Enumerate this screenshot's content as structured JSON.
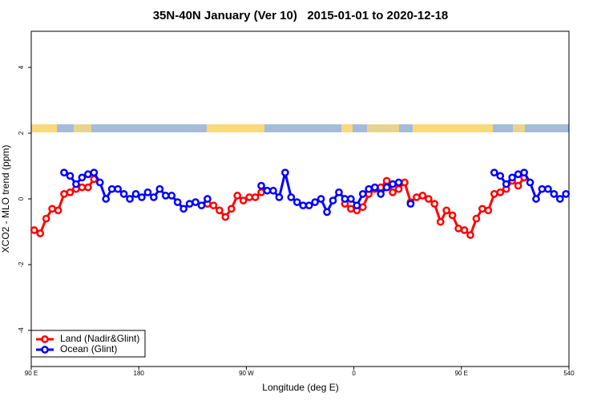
{
  "chart_data": {
    "type": "line",
    "title": "35N-40N January (Ver 10)   2015-01-01 to 2020-12-18",
    "xlabel": "Longitude (deg E)",
    "ylabel": "XCO2 - MLO trend (ppm)",
    "x": [
      92.5,
      97.5,
      102.5,
      107.5,
      112.5,
      117.5,
      122.5,
      127.5,
      132.5,
      137.5,
      142.5,
      147.5,
      152.5,
      157.5,
      162.5,
      167.5,
      172.5,
      177.5,
      182.5,
      187.5,
      192.5,
      197.5,
      202.5,
      207.5,
      212.5,
      217.5,
      222.5,
      227.5,
      232.5,
      237.5,
      242.5,
      247.5,
      252.5,
      257.5,
      262.5,
      267.5,
      272.5,
      277.5,
      282.5,
      287.5,
      292.5,
      297.5,
      302.5,
      307.5,
      312.5,
      317.5,
      322.5,
      327.5,
      332.5,
      337.5,
      342.5,
      347.5,
      352.5,
      357.5,
      362.5,
      367.5,
      372.5,
      377.5,
      382.5,
      387.5,
      392.5,
      397.5,
      402.5,
      407.5,
      412.5,
      417.5,
      422.5,
      427.5,
      432.5,
      437.5,
      442.5,
      447.5,
      452.5,
      457.5,
      462.5,
      467.5,
      472.5,
      477.5,
      482.5,
      487.5,
      492.5,
      497.5,
      502.5,
      507.5,
      512.5,
      517.5,
      522.5,
      527.5,
      532.5,
      537.5
    ],
    "series": [
      {
        "name": "Land (Nadir&Glint)",
        "color": "#ff0000",
        "values": [
          -0.95,
          -1.05,
          -0.6,
          -0.3,
          -0.35,
          0.15,
          0.2,
          0.3,
          0.35,
          0.35,
          0.6,
          null,
          null,
          null,
          null,
          null,
          null,
          null,
          null,
          null,
          null,
          null,
          null,
          null,
          null,
          null,
          null,
          null,
          null,
          -0.15,
          -0.2,
          -0.35,
          -0.55,
          -0.3,
          0.1,
          -0.05,
          0.05,
          0.05,
          0.2,
          null,
          null,
          null,
          null,
          null,
          null,
          null,
          null,
          null,
          null,
          null,
          null,
          null,
          -0.15,
          -0.3,
          -0.35,
          -0.25,
          0.15,
          0.3,
          0.35,
          0.55,
          0.2,
          0.3,
          0.5,
          -0.1,
          0.05,
          0.1,
          0.0,
          -0.15,
          -0.7,
          -0.35,
          -0.5,
          -0.9,
          -0.95,
          -1.1,
          -0.6,
          -0.3,
          -0.35,
          0.15,
          0.2,
          0.3,
          0.55,
          0.4,
          0.65,
          null,
          null,
          null,
          null,
          null,
          null,
          null
        ]
      },
      {
        "name": "Ocean (Glint)",
        "color": "#0000ff",
        "values": [
          null,
          null,
          null,
          null,
          null,
          0.8,
          0.7,
          0.45,
          0.65,
          0.75,
          0.8,
          0.5,
          0.0,
          0.3,
          0.3,
          0.15,
          0.0,
          0.15,
          0.05,
          0.2,
          0.05,
          0.3,
          0.1,
          0.1,
          -0.1,
          -0.3,
          -0.15,
          -0.1,
          -0.2,
          0.0,
          null,
          null,
          null,
          null,
          null,
          null,
          null,
          null,
          0.4,
          0.25,
          0.25,
          0.05,
          0.8,
          0.05,
          -0.1,
          -0.2,
          -0.2,
          -0.1,
          0.0,
          -0.4,
          -0.05,
          0.2,
          0.0,
          0.0,
          -0.2,
          0.15,
          0.3,
          0.35,
          0.15,
          0.35,
          0.45,
          0.5,
          null,
          -0.15,
          null,
          null,
          null,
          null,
          null,
          null,
          null,
          null,
          null,
          null,
          null,
          null,
          null,
          0.8,
          0.7,
          0.45,
          0.65,
          0.75,
          0.8,
          0.5,
          0.0,
          0.3,
          0.3,
          0.15,
          0.0,
          0.15
        ]
      }
    ],
    "xlim": [
      90,
      540
    ],
    "xticks": [
      {
        "value": 90,
        "label": "90 E"
      },
      180,
      {
        "value": 270,
        "label": "90 W"
      },
      {
        "value": 360,
        "label": "0"
      },
      {
        "value": 450,
        "label": "90 E"
      },
      540
    ],
    "ylim": [
      -5.1,
      5.1
    ],
    "yticks": [
      -4,
      -2,
      0,
      2,
      4
    ],
    "legend": "bottom-left"
  }
}
